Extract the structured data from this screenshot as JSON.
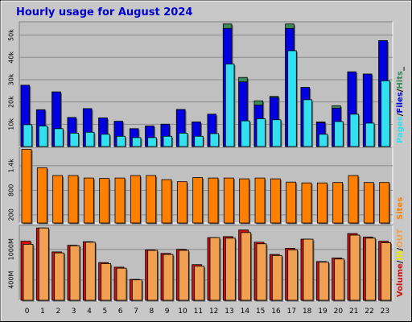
{
  "chart_data": {
    "type": "bar",
    "title": "Hourly usage for August 2024",
    "categories": [
      "0",
      "1",
      "2",
      "3",
      "4",
      "5",
      "6",
      "7",
      "8",
      "9",
      "10",
      "11",
      "12",
      "13",
      "14",
      "15",
      "16",
      "17",
      "18",
      "19",
      "20",
      "21",
      "22",
      "23"
    ],
    "colors": {
      "hits": "#3a8a5a",
      "files": "#0000e0",
      "pages": "#33e0f0",
      "sites": "#ff8000",
      "volume": "#cc1111",
      "in": "#e8e800",
      "out": "#f0a050",
      "plot_bg": "#c0c0c0",
      "title": "#0000cc"
    },
    "panels": [
      {
        "id": "requests",
        "ylim": [
          0,
          56000
        ],
        "yticks": [
          {
            "v": 10000,
            "label": "10k"
          },
          {
            "v": 20000,
            "label": "20k"
          },
          {
            "v": 30000,
            "label": "30k"
          },
          {
            "v": 40000,
            "label": "40k"
          },
          {
            "v": 50000,
            "label": "50k"
          }
        ],
        "legend": [
          {
            "text": "Pages",
            "color": "#33e0f0"
          },
          {
            "text": "/",
            "color": "#000000"
          },
          {
            "text": "Files",
            "color": "#0000e0"
          },
          {
            "text": "/",
            "color": "#000000"
          },
          {
            "text": "Hits",
            "color": "#3a8a5a"
          },
          {
            "text": "_",
            "color": "#000000"
          }
        ],
        "series": [
          {
            "name": "Hits",
            "key": "hits",
            "values": [
              27500,
              16500,
              24500,
              13000,
              17000,
              12800,
              11300,
              8000,
              9200,
              10000,
              16600,
              11000,
              14500,
              55000,
              31000,
              20500,
              22500,
              55000,
              26500,
              11000,
              18300,
              33500,
              32500,
              47500
            ]
          },
          {
            "name": "Files",
            "key": "files",
            "values": [
              27500,
              16500,
              24500,
              13000,
              17000,
              12800,
              11300,
              8000,
              9200,
              10000,
              16600,
              11000,
              14500,
              53000,
              29000,
              18600,
              22000,
              53000,
              26500,
              10700,
              17200,
              33500,
              32500,
              47500
            ]
          },
          {
            "name": "Pages",
            "key": "pages",
            "values": [
              9800,
              9200,
              8000,
              6000,
              6400,
              5500,
              4600,
              4000,
              4000,
              4600,
              6000,
              4600,
              5800,
              37000,
              11500,
              12500,
              12000,
              43000,
              21000,
              5500,
              11200,
              14500,
              10500,
              29500
            ]
          }
        ]
      },
      {
        "id": "sites",
        "ylim": [
          0,
          1850
        ],
        "yticks": [
          {
            "v": 200,
            "label": "200"
          },
          {
            "v": 800,
            "label": "800"
          },
          {
            "v": 1400,
            "label": "1.4k"
          }
        ],
        "legend": [
          {
            "text": "Sites",
            "color": "#ff8000"
          }
        ],
        "series": [
          {
            "name": "Sites",
            "key": "sites",
            "values": [
              1800,
              1350,
              1160,
              1160,
              1100,
              1090,
              1100,
              1160,
              1160,
              1060,
              1010,
              1110,
              1100,
              1100,
              1080,
              1100,
              1080,
              1000,
              980,
              980,
              990,
              1160,
              990,
              990
            ]
          }
        ]
      },
      {
        "id": "volume",
        "ylim": [
          0,
          1470
        ],
        "yticks": [
          {
            "v": 400,
            "label": "400M"
          },
          {
            "v": 1000,
            "label": "1000M"
          }
        ],
        "legend": [
          {
            "text": "Volume",
            "color": "#cc1111"
          },
          {
            "text": "/",
            "color": "#000000"
          },
          {
            "text": "IN",
            "color": "#e8e800"
          },
          {
            "text": "/",
            "color": "#000000"
          },
          {
            "text": "OUT",
            "color": "#f0a050"
          }
        ],
        "series": [
          {
            "name": "Volume",
            "key": "volume",
            "values": [
              1160,
              1420,
              950,
              1080,
              1150,
              740,
              650,
              410,
              990,
              920,
              1000,
              700,
              1230,
              1250,
              1380,
              1140,
              900,
              1020,
              1200,
              760,
              830,
              1310,
              1240,
              1160
            ]
          },
          {
            "name": "OUT",
            "key": "out",
            "values": [
              1100,
              1420,
              930,
              1070,
              1140,
              720,
              630,
              400,
              980,
              900,
              980,
              670,
              1230,
              1220,
              1330,
              1110,
              880,
              990,
              1200,
              750,
              810,
              1280,
              1220,
              1130
            ]
          }
        ]
      }
    ]
  }
}
